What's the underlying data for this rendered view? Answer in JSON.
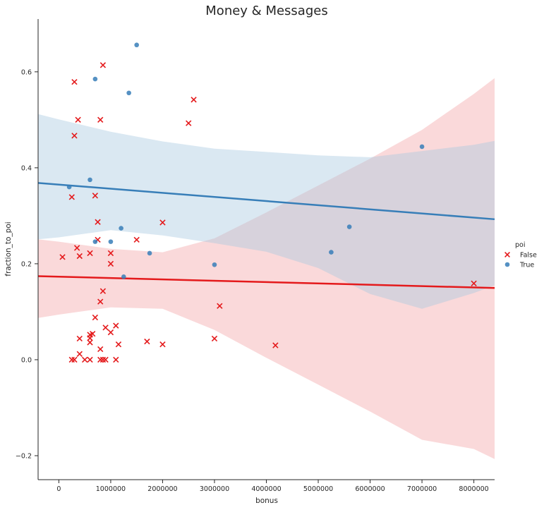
{
  "chart_data": {
    "type": "scatter",
    "title": "Money & Messages",
    "xlabel": "bonus",
    "ylabel": "fraction_to_poi",
    "xlim": [
      -400000,
      8400000
    ],
    "ylim": [
      -0.25,
      0.71
    ],
    "xticks": [
      0,
      1000000,
      2000000,
      3000000,
      4000000,
      5000000,
      6000000,
      7000000,
      8000000
    ],
    "xtick_labels": [
      "0",
      "1000000",
      "2000000",
      "3000000",
      "4000000",
      "5000000",
      "6000000",
      "7000000",
      "8000000"
    ],
    "yticks": [
      -0.2,
      0.0,
      0.2,
      0.4,
      0.6
    ],
    "ytick_labels": [
      "−0.2",
      "0.0",
      "0.2",
      "0.4",
      "0.6"
    ],
    "grid": false,
    "legend": {
      "title": "poi",
      "placement": "right"
    },
    "series": [
      {
        "name": "False",
        "color": "#e41a1c",
        "marker": "x",
        "points": [
          [
            300000,
            0.579
          ],
          [
            850000,
            0.614
          ],
          [
            2600000,
            0.542
          ],
          [
            370000,
            0.5
          ],
          [
            800000,
            0.5
          ],
          [
            2500000,
            0.493
          ],
          [
            300000,
            0.467
          ],
          [
            250000,
            0.339
          ],
          [
            700000,
            0.342
          ],
          [
            750000,
            0.287
          ],
          [
            2000000,
            0.286
          ],
          [
            750000,
            0.25
          ],
          [
            1500000,
            0.25
          ],
          [
            350000,
            0.233
          ],
          [
            600000,
            0.222
          ],
          [
            1000000,
            0.222
          ],
          [
            400000,
            0.216
          ],
          [
            70000,
            0.214
          ],
          [
            1000000,
            0.2
          ],
          [
            8000000,
            0.159
          ],
          [
            850000,
            0.143
          ],
          [
            800000,
            0.121
          ],
          [
            3100000,
            0.112
          ],
          [
            700000,
            0.088
          ],
          [
            1100000,
            0.071
          ],
          [
            900000,
            0.067
          ],
          [
            1000000,
            0.057
          ],
          [
            650000,
            0.054
          ],
          [
            600000,
            0.052
          ],
          [
            600000,
            0.045
          ],
          [
            400000,
            0.044
          ],
          [
            3000000,
            0.044
          ],
          [
            600000,
            0.036
          ],
          [
            1700000,
            0.038
          ],
          [
            1150000,
            0.032
          ],
          [
            2000000,
            0.032
          ],
          [
            4175000,
            0.03
          ],
          [
            800000,
            0.022
          ],
          [
            400000,
            0.012
          ],
          [
            250000,
            0.0
          ],
          [
            300000,
            0.0
          ],
          [
            500000,
            0.0
          ],
          [
            600000,
            0.0
          ],
          [
            800000,
            0.0
          ],
          [
            850000,
            0.0
          ],
          [
            900000,
            0.0
          ],
          [
            1100000,
            0.0
          ]
        ],
        "regression": {
          "intercept": 0.173,
          "slope": -2.8e-09
        },
        "ci_band": {
          "x": [
            -400000,
            0,
            1000000,
            2000000,
            3000000,
            4000000,
            5000000,
            6000000,
            7000000,
            8000000,
            8400000
          ],
          "upper": [
            0.251,
            0.246,
            0.231,
            0.224,
            0.253,
            0.307,
            0.363,
            0.419,
            0.479,
            0.554,
            0.587
          ],
          "lower": [
            0.087,
            0.094,
            0.109,
            0.106,
            0.062,
            0.004,
            -0.052,
            -0.108,
            -0.167,
            -0.186,
            -0.207
          ]
        }
      },
      {
        "name": "True",
        "color": "#377eb8",
        "marker": "o",
        "points": [
          [
            1500000,
            0.656
          ],
          [
            700000,
            0.585
          ],
          [
            1350000,
            0.556
          ],
          [
            7000000,
            0.444
          ],
          [
            600000,
            0.375
          ],
          [
            200000,
            0.36
          ],
          [
            5600000,
            0.277
          ],
          [
            1200000,
            0.274
          ],
          [
            700000,
            0.246
          ],
          [
            1000000,
            0.246
          ],
          [
            5250000,
            0.224
          ],
          [
            1750000,
            0.222
          ],
          [
            3000000,
            0.198
          ],
          [
            1250000,
            0.173
          ]
        ],
        "regression": {
          "intercept": 0.365,
          "slope": -8.6e-09
        },
        "ci_band": {
          "x": [
            -400000,
            0,
            1000000,
            2000000,
            3000000,
            4000000,
            5000000,
            6000000,
            7000000,
            8000000,
            8400000
          ],
          "upper": [
            0.512,
            0.501,
            0.475,
            0.455,
            0.44,
            0.433,
            0.426,
            0.422,
            0.435,
            0.448,
            0.456
          ],
          "lower": [
            0.251,
            0.255,
            0.27,
            0.259,
            0.243,
            0.225,
            0.191,
            0.137,
            0.106,
            0.139,
            0.155
          ]
        }
      }
    ]
  }
}
